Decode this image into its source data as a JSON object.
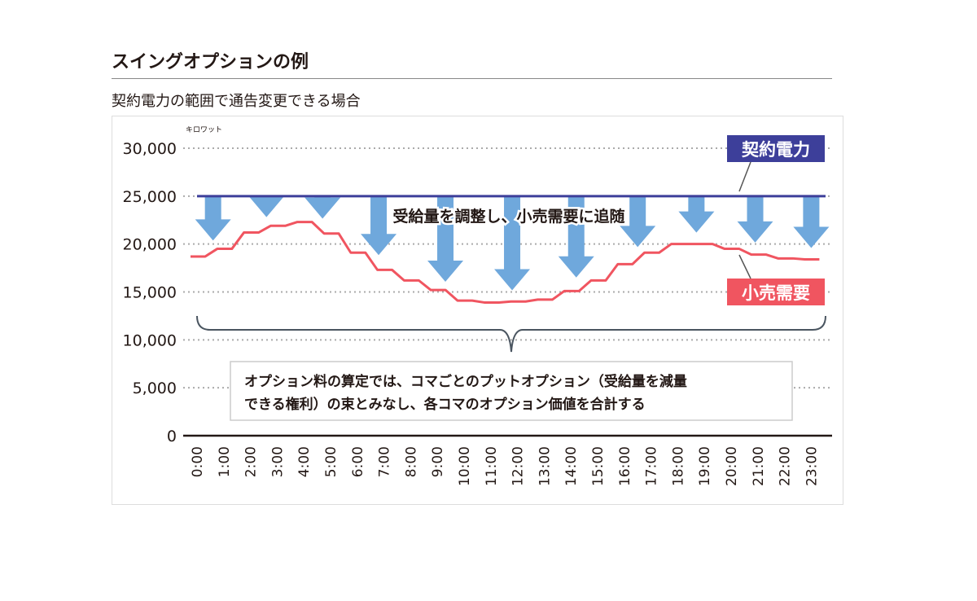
{
  "header": {
    "title": "スイングオプションの例",
    "subtitle": "契約電力の範囲で通告変更できる場合"
  },
  "chart_data": {
    "type": "line",
    "unit_label": "キロワット",
    "ylim": [
      0,
      30000
    ],
    "yticks": [
      "0",
      "5,000",
      "10,000",
      "15,000",
      "20,000",
      "25,000",
      "30,000"
    ],
    "ytick_values": [
      0,
      5000,
      10000,
      15000,
      20000,
      25000,
      30000
    ],
    "grid": true,
    "categories": [
      "0:00",
      "1:00",
      "2:00",
      "3:00",
      "4:00",
      "5:00",
      "6:00",
      "7:00",
      "8:00",
      "9:00",
      "10:00",
      "11:00",
      "12:00",
      "13:00",
      "14:00",
      "15:00",
      "16:00",
      "17:00",
      "18:00",
      "19:00",
      "20:00",
      "21:00",
      "22:00",
      "23:00"
    ],
    "series": [
      {
        "name": "契約電力",
        "color": "#3d3f9a",
        "values": [
          25000,
          25000,
          25000,
          25000,
          25000,
          25000,
          25000,
          25000,
          25000,
          25000,
          25000,
          25000,
          25000,
          25000,
          25000,
          25000,
          25000,
          25000,
          25000,
          25000,
          25000,
          25000,
          25000,
          25000
        ]
      },
      {
        "name": "小売需要",
        "color": "#f05560",
        "values": [
          18700,
          19500,
          21200,
          21900,
          22300,
          21100,
          19100,
          17300,
          16200,
          15200,
          14100,
          13900,
          14000,
          14200,
          15100,
          16200,
          17900,
          19100,
          20000,
          20000,
          19500,
          18900,
          18500,
          18400
        ]
      }
    ],
    "arrow_color": "#6fa8dc",
    "annotations": {
      "arrows_label": "受給量を調整し、小売需要に追随",
      "contract_label": "契約電力",
      "demand_label": "小売需要",
      "box_line1": "オプション料の算定では、コマごとのプットオプション（受給量を減量",
      "box_line2": "できる権利）の束とみなし、各コマのオプション価値を合計する"
    }
  }
}
